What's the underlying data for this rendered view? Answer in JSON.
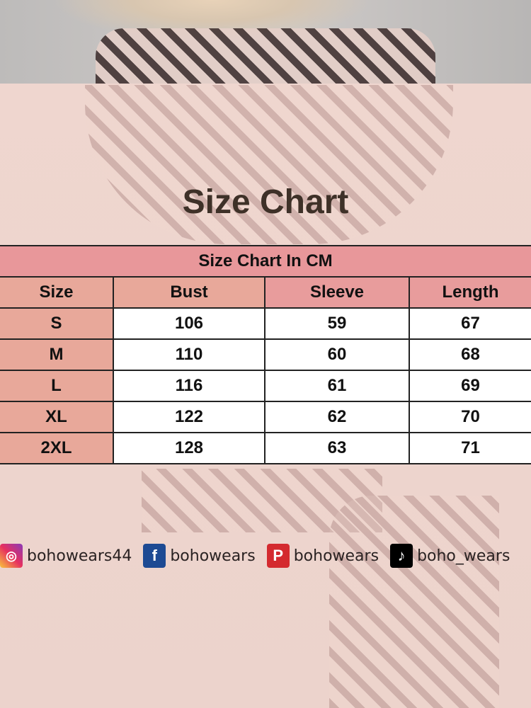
{
  "title": "Size Chart",
  "table": {
    "caption": "Size Chart In CM",
    "headers": [
      "Size",
      "Bust",
      "Sleeve",
      "Length"
    ],
    "rows": [
      [
        "S",
        "106",
        "59",
        "67"
      ],
      [
        "M",
        "110",
        "60",
        "68"
      ],
      [
        "L",
        "116",
        "61",
        "69"
      ],
      [
        "XL",
        "122",
        "62",
        "70"
      ],
      [
        "2XL",
        "128",
        "63",
        "71"
      ]
    ]
  },
  "social": [
    {
      "icon": "instagram-icon",
      "handle": "bohowears44",
      "color": "#d6307a"
    },
    {
      "icon": "facebook-icon",
      "handle": "bohowears",
      "color": "#1d4a93"
    },
    {
      "icon": "pinterest-icon",
      "handle": "bohowears",
      "color": "#d42a2f"
    },
    {
      "icon": "tiktok-icon",
      "handle": "boho_wears",
      "color": "#000000"
    }
  ]
}
